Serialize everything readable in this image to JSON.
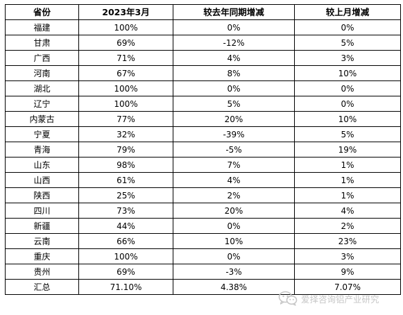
{
  "table": {
    "headers": [
      "省份",
      "2023年3月",
      "较去年同期增减",
      "较上月增减"
    ],
    "rows": [
      [
        "福建",
        "100%",
        "0%",
        "0%"
      ],
      [
        "甘肃",
        "69%",
        "-12%",
        "5%"
      ],
      [
        "广西",
        "71%",
        "4%",
        "3%"
      ],
      [
        "河南",
        "67%",
        "8%",
        "10%"
      ],
      [
        "湖北",
        "100%",
        "0%",
        "0%"
      ],
      [
        "辽宁",
        "100%",
        "5%",
        "0%"
      ],
      [
        "内蒙古",
        "77%",
        "20%",
        "10%"
      ],
      [
        "宁夏",
        "32%",
        "-39%",
        "5%"
      ],
      [
        "青海",
        "79%",
        "-5%",
        "19%"
      ],
      [
        "山东",
        "98%",
        "7%",
        "1%"
      ],
      [
        "山西",
        "61%",
        "4%",
        "1%"
      ],
      [
        "陕西",
        "25%",
        "2%",
        "1%"
      ],
      [
        "四川",
        "73%",
        "20%",
        "4%"
      ],
      [
        "新疆",
        "44%",
        "0%",
        "2%"
      ],
      [
        "云南",
        "66%",
        "10%",
        "23%"
      ],
      [
        "重庆",
        "100%",
        "0%",
        "3%"
      ],
      [
        "贵州",
        "69%",
        "-3%",
        "9%"
      ],
      [
        "汇总",
        "71.10%",
        "4.38%",
        "7.07%"
      ]
    ]
  },
  "watermark": {
    "text": "爱择咨询铝产业研究",
    "icon": "wechat-icon",
    "color": "#c7c7c7"
  }
}
